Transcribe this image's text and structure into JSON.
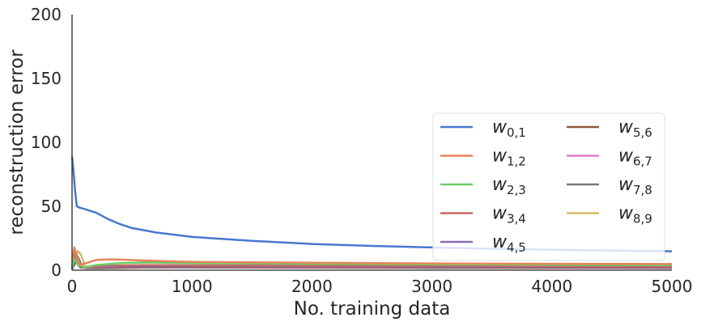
{
  "chart_data": {
    "type": "line",
    "xlabel": "No. training data",
    "ylabel": "reconstruction error",
    "xlim": [
      0,
      5000
    ],
    "ylim": [
      0,
      200
    ],
    "x_ticks": [
      "0",
      "1000",
      "2000",
      "3000",
      "4000",
      "5000"
    ],
    "y_ticks": [
      "0",
      "50",
      "100",
      "150",
      "200"
    ],
    "grid": false,
    "legend_position": "lower-right",
    "legend_columns": 2,
    "series": [
      {
        "name": "w",
        "sub": "0,1",
        "color": "#4878CF",
        "points": [
          [
            0,
            89
          ],
          [
            10,
            80
          ],
          [
            25,
            62
          ],
          [
            40,
            50
          ],
          [
            60,
            49
          ],
          [
            100,
            48
          ],
          [
            200,
            45
          ],
          [
            300,
            40
          ],
          [
            400,
            36
          ],
          [
            500,
            33
          ],
          [
            700,
            29.5
          ],
          [
            1000,
            26
          ],
          [
            1500,
            23
          ],
          [
            2000,
            20.5
          ],
          [
            2500,
            19
          ],
          [
            3000,
            17.8
          ],
          [
            3500,
            16.8
          ],
          [
            4000,
            16
          ],
          [
            4500,
            15.3
          ],
          [
            5000,
            14.8
          ]
        ]
      },
      {
        "name": "w",
        "sub": "1,2",
        "color": "#E8845A",
        "points": [
          [
            0,
            6
          ],
          [
            20,
            18
          ],
          [
            45,
            9
          ],
          [
            70,
            4
          ],
          [
            100,
            5
          ],
          [
            200,
            8
          ],
          [
            300,
            8.5
          ],
          [
            400,
            8.3
          ],
          [
            600,
            7.5
          ],
          [
            1000,
            6.5
          ],
          [
            2000,
            5.8
          ],
          [
            3000,
            5.3
          ],
          [
            4000,
            5
          ],
          [
            5000,
            4.8
          ]
        ]
      },
      {
        "name": "w",
        "sub": "2,3",
        "color": "#6ACC65",
        "points": [
          [
            0,
            2
          ],
          [
            20,
            9
          ],
          [
            50,
            4
          ],
          [
            100,
            2
          ],
          [
            200,
            4
          ],
          [
            400,
            5.5
          ],
          [
            600,
            6
          ],
          [
            1000,
            5.5
          ],
          [
            2000,
            5
          ],
          [
            3000,
            4.5
          ],
          [
            4000,
            4.2
          ],
          [
            5000,
            4
          ]
        ]
      },
      {
        "name": "w",
        "sub": "3,4",
        "color": "#C46666",
        "points": [
          [
            0,
            3
          ],
          [
            25,
            13
          ],
          [
            55,
            5
          ],
          [
            100,
            2
          ],
          [
            300,
            3.5
          ],
          [
            600,
            4
          ],
          [
            1000,
            3.8
          ],
          [
            2000,
            3.5
          ],
          [
            3000,
            3.3
          ],
          [
            4000,
            3.1
          ],
          [
            5000,
            3
          ]
        ]
      },
      {
        "name": "w",
        "sub": "4,5",
        "color": "#8C6BB1",
        "points": [
          [
            0,
            1
          ],
          [
            30,
            10
          ],
          [
            60,
            3
          ],
          [
            120,
            1.5
          ],
          [
            400,
            3
          ],
          [
            1000,
            3.3
          ],
          [
            2000,
            3
          ],
          [
            3000,
            2.8
          ],
          [
            4000,
            2.6
          ],
          [
            5000,
            2.5
          ]
        ]
      },
      {
        "name": "w",
        "sub": "5,6",
        "color": "#8C5A3C",
        "points": [
          [
            0,
            1
          ],
          [
            35,
            8
          ],
          [
            70,
            2
          ],
          [
            150,
            1.5
          ],
          [
            500,
            2.5
          ],
          [
            1000,
            2.6
          ],
          [
            2000,
            2.4
          ],
          [
            3000,
            2.2
          ],
          [
            4000,
            2.1
          ],
          [
            5000,
            2
          ]
        ]
      },
      {
        "name": "w",
        "sub": "6,7",
        "color": "#DC7EC0",
        "points": [
          [
            0,
            1
          ],
          [
            40,
            7
          ],
          [
            80,
            2
          ],
          [
            200,
            1.8
          ],
          [
            600,
            2.4
          ],
          [
            1000,
            2.3
          ],
          [
            2000,
            2.1
          ],
          [
            3000,
            2
          ],
          [
            4000,
            1.9
          ],
          [
            5000,
            1.8
          ]
        ]
      },
      {
        "name": "w",
        "sub": "7,8",
        "color": "#797979",
        "points": [
          [
            0,
            1
          ],
          [
            45,
            11
          ],
          [
            90,
            2
          ],
          [
            200,
            1.5
          ],
          [
            600,
            2
          ],
          [
            1000,
            2
          ],
          [
            2000,
            1.9
          ],
          [
            3000,
            1.8
          ],
          [
            4000,
            1.7
          ],
          [
            5000,
            1.6
          ]
        ]
      },
      {
        "name": "w",
        "sub": "8,9",
        "color": "#D5BB67",
        "points": [
          [
            0,
            1
          ],
          [
            50,
            15
          ],
          [
            75,
            12
          ],
          [
            110,
            3
          ],
          [
            200,
            2
          ],
          [
            600,
            2.5
          ],
          [
            1000,
            2.6
          ],
          [
            2000,
            2.4
          ],
          [
            3000,
            2.2
          ],
          [
            4000,
            2.1
          ],
          [
            5000,
            2
          ]
        ]
      }
    ]
  }
}
